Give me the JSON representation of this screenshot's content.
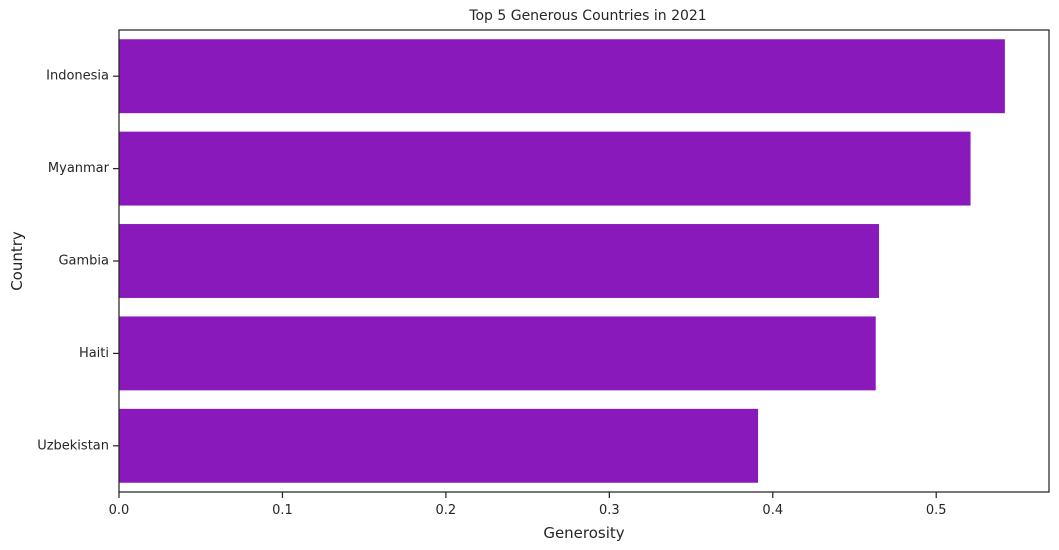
{
  "chart_data": {
    "type": "bar",
    "orientation": "horizontal",
    "title": "Top 5 Generous Countries in 2021",
    "xlabel": "Generosity",
    "ylabel": "Country",
    "categories": [
      "Indonesia",
      "Myanmar",
      "Gambia",
      "Haiti",
      "Uzbekistan"
    ],
    "values": [
      0.542,
      0.521,
      0.465,
      0.463,
      0.391
    ],
    "xlim": [
      0,
      0.569
    ],
    "xticks": [
      0.0,
      0.1,
      0.2,
      0.3,
      0.4,
      0.5
    ],
    "xtick_labels": [
      "0.0",
      "0.1",
      "0.2",
      "0.3",
      "0.4",
      "0.5"
    ],
    "grid": false,
    "bar_color": "#8a19bb"
  }
}
